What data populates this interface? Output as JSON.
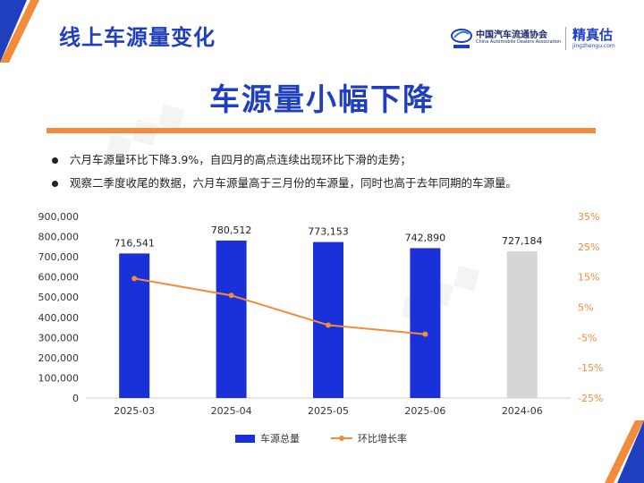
{
  "header": {
    "title": "线上车源量变化"
  },
  "logos": {
    "cada_cn": "中国汽车流通协会",
    "cada_en": "China Automobile Dealers Association",
    "jzg_cn": "精真估",
    "jzg_en": "jingzhengu.com"
  },
  "main_title": "车源量小幅下降",
  "bullets": [
    "六月车源量环比下降3.9%，自四月的高点连续出现环比下滑的走势；",
    "观察二季度收尾的数据，六月车源量高于三月份的车源量，同时也高于去年同期的车源量。"
  ],
  "colors": {
    "brand_blue": "#1f3fbf",
    "bar_blue": "#1a30d8",
    "bar_grey": "#d6d6d6",
    "line_orange": "#f28c3c"
  },
  "chart_data": {
    "type": "bar",
    "categories": [
      "2025-03",
      "2025-04",
      "2025-05",
      "2025-06",
      "2024-06"
    ],
    "series": [
      {
        "name": "车源总量",
        "type": "bar",
        "axis": "left",
        "values": [
          716541,
          780512,
          773153,
          742890,
          727184
        ],
        "labels": [
          "716,541",
          "780,512",
          "773,153",
          "742,890",
          "727,184"
        ]
      },
      {
        "name": "环比增长率",
        "type": "line",
        "axis": "right",
        "values": [
          14.5,
          8.9,
          -0.9,
          -3.9,
          null
        ]
      }
    ],
    "ylim_left": [
      0,
      900000
    ],
    "yticks_left": [
      "0",
      "100,000",
      "200,000",
      "300,000",
      "400,000",
      "500,000",
      "600,000",
      "700,000",
      "800,000",
      "900,000"
    ],
    "ylim_right": [
      -25,
      35
    ],
    "yticks_right": [
      "-25%",
      "-15%",
      "-5%",
      "5%",
      "15%",
      "25%",
      "35%"
    ],
    "highlight_category": "2024-06",
    "grid": false,
    "legend_position": "bottom"
  }
}
